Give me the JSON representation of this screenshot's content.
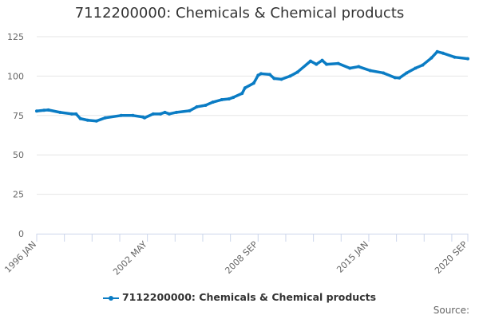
{
  "chart_data": {
    "type": "line",
    "title": "7112200000: Chemicals & Chemical products",
    "xlabel": "",
    "ylabel": "",
    "xlim": [
      "1996-01",
      "2020-09"
    ],
    "ylim": [
      0,
      125
    ],
    "yticks": [
      0,
      25,
      50,
      75,
      100,
      125
    ],
    "xtick_labels": [
      "1996 JAN",
      "2002 MAY",
      "2008 SEP",
      "2015 JAN",
      "2020 SEP"
    ],
    "xtick_label_dates": [
      "1996-01",
      "2002-05",
      "2008-09",
      "2015-01",
      "2020-09"
    ],
    "xtick_interval_months": 19,
    "grid": true,
    "legend_position": "bottom",
    "series": [
      {
        "name": "7112200000: Chemicals & Chemical products",
        "color": "#0a7cc4",
        "x": [
          "1996-01",
          "1996-06",
          "1996-09",
          "1997-05",
          "1998-01",
          "1998-04",
          "1998-07",
          "1998-12",
          "1999-06",
          "1999-12",
          "2000-11",
          "2001-07",
          "2002-02",
          "2002-03",
          "2002-09",
          "2003-02",
          "2003-05",
          "2003-08",
          "2004-01",
          "2004-10",
          "2005-03",
          "2005-09",
          "2006-02",
          "2006-08",
          "2007-01",
          "2007-04",
          "2007-10",
          "2007-12",
          "2008-06",
          "2008-09",
          "2008-11",
          "2009-05",
          "2009-08",
          "2010-01",
          "2010-07",
          "2010-12",
          "2011-09",
          "2012-01",
          "2012-05",
          "2012-08",
          "2013-04",
          "2013-12",
          "2014-06",
          "2015-02",
          "2015-11",
          "2016-07",
          "2016-10",
          "2017-03",
          "2017-09",
          "2018-02",
          "2018-08",
          "2018-12",
          "2019-04",
          "2019-12",
          "2020-09"
        ],
        "y": [
          77.8,
          78.3,
          78.5,
          77,
          76,
          76,
          73,
          72,
          71.5,
          73.5,
          75,
          75,
          74,
          73.5,
          76,
          76,
          77,
          76,
          77,
          78,
          80.5,
          81.5,
          83.5,
          85,
          85.5,
          86.5,
          89,
          92.5,
          95.5,
          100.5,
          101.5,
          101,
          98.5,
          98,
          100,
          102.5,
          109.5,
          107.5,
          110,
          107.5,
          108,
          105,
          106,
          103.5,
          102,
          99,
          98.8,
          102,
          105,
          107,
          111.5,
          115.5,
          114.5,
          112,
          111
        ]
      }
    ]
  },
  "legend": {
    "label": "7112200000: Chemicals & Chemical products"
  },
  "source": "Source:"
}
